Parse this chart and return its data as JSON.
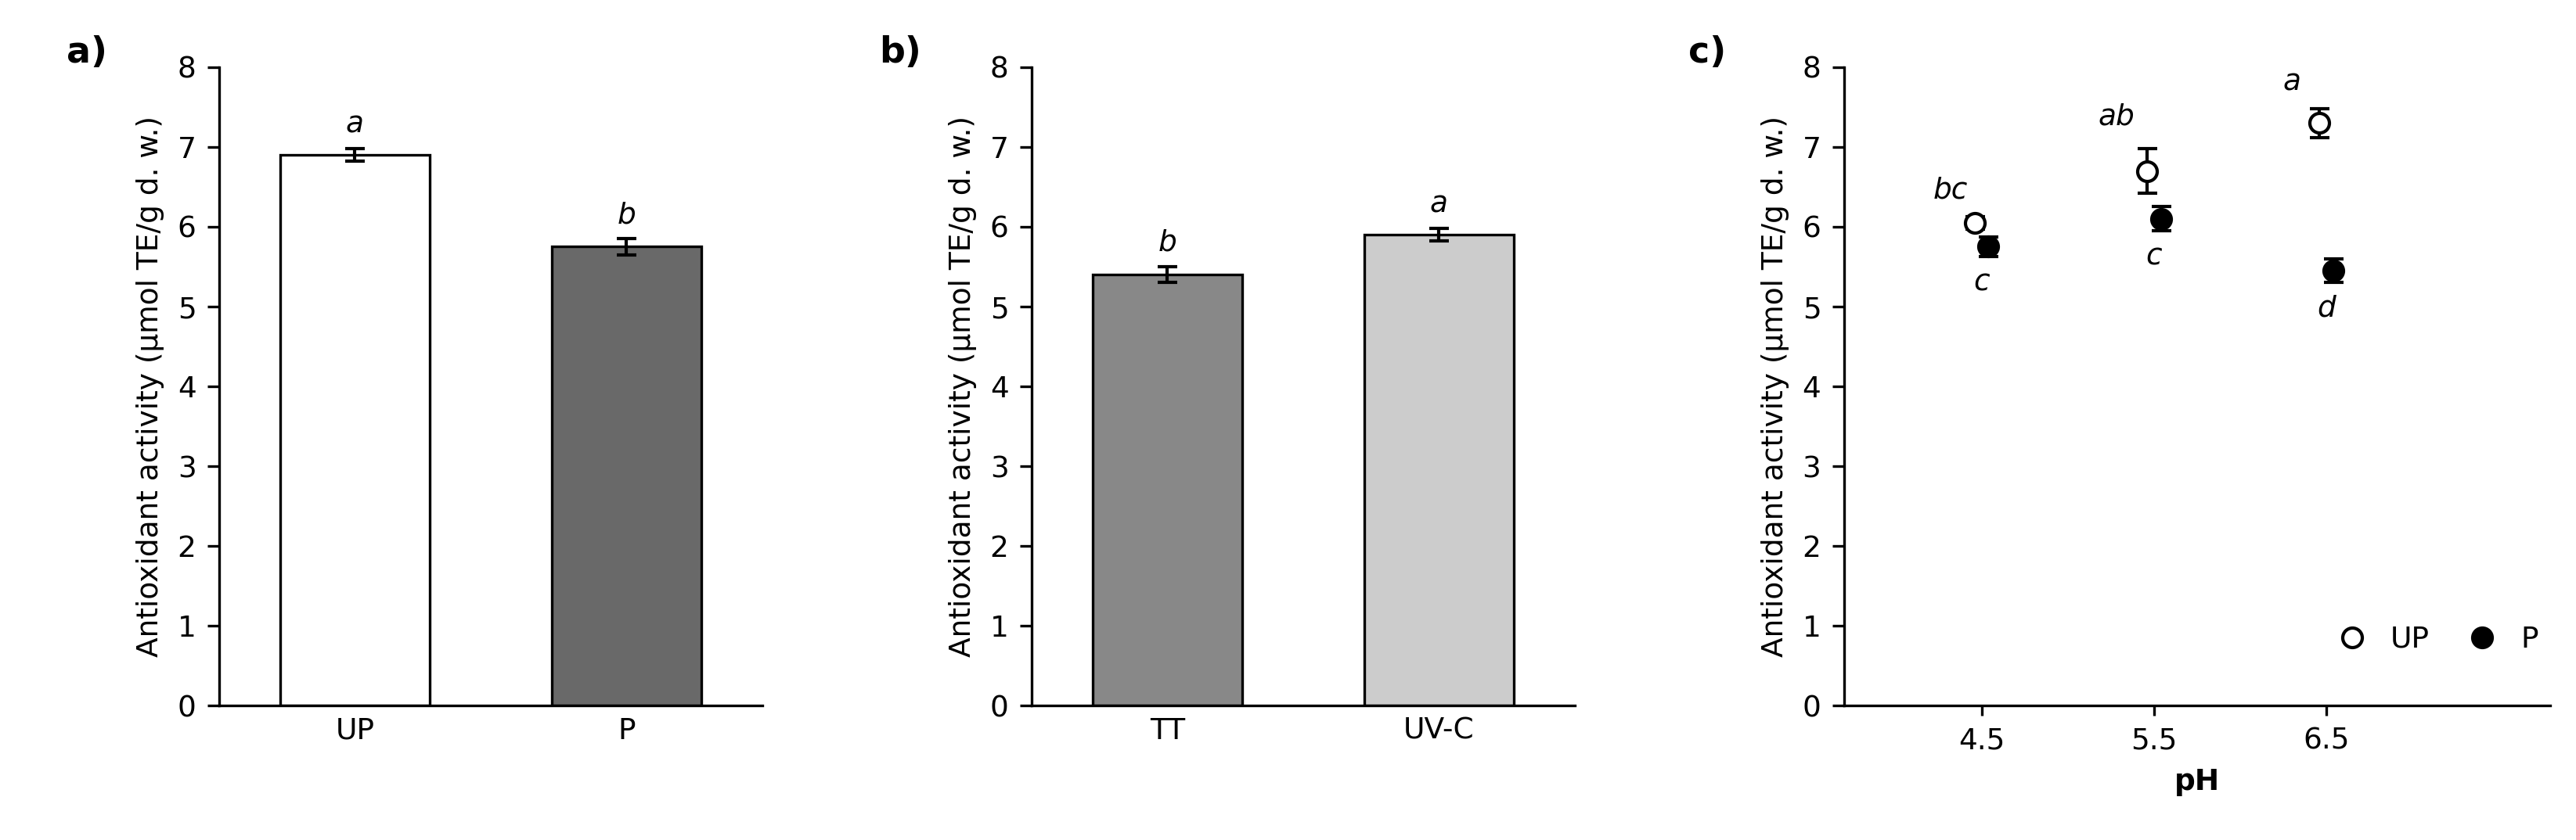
{
  "panel_a": {
    "categories": [
      "UP",
      "P"
    ],
    "values": [
      6.9,
      5.75
    ],
    "errors": [
      0.08,
      0.1
    ],
    "bar_colors": [
      "#ffffff",
      "#696969"
    ],
    "bar_edgecolors": [
      "#000000",
      "#000000"
    ],
    "letters": [
      "a",
      "b"
    ],
    "ylabel": "Antioxidant activity (μmol TE/g d. w.)",
    "ylim": [
      0,
      8
    ],
    "yticks": [
      0,
      1,
      2,
      3,
      4,
      5,
      6,
      7,
      8
    ],
    "panel_label": "a)"
  },
  "panel_b": {
    "categories": [
      "TT",
      "UV-C"
    ],
    "values": [
      5.4,
      5.9
    ],
    "errors": [
      0.1,
      0.08
    ],
    "bar_colors": [
      "#888888",
      "#cccccc"
    ],
    "bar_edgecolors": [
      "#000000",
      "#000000"
    ],
    "letters": [
      "b",
      "a"
    ],
    "ylabel": "Antioxidant activity (μmol TE/g d. w.)",
    "ylim": [
      0,
      8
    ],
    "yticks": [
      0,
      1,
      2,
      3,
      4,
      5,
      6,
      7,
      8
    ],
    "panel_label": "b)"
  },
  "panel_c": {
    "x": [
      4.5,
      5.5,
      6.5
    ],
    "up_values": [
      6.05,
      6.7,
      7.3
    ],
    "up_errors": [
      0.08,
      0.28,
      0.18
    ],
    "p_values": [
      5.75,
      6.1,
      5.45
    ],
    "p_errors": [
      0.12,
      0.15,
      0.15
    ],
    "up_letters": [
      "bc",
      "ab",
      "a"
    ],
    "p_letters": [
      "c",
      "c",
      "d"
    ],
    "xlabel": "pH",
    "ylabel": "Antioxidant activity (μmol TE/g d. w.)",
    "ylim": [
      0,
      8
    ],
    "yticks": [
      0,
      1,
      2,
      3,
      4,
      5,
      6,
      7,
      8
    ],
    "xticks": [
      4.5,
      5.5,
      6.5
    ],
    "xlim": [
      3.7,
      7.8
    ],
    "panel_label": "c)"
  },
  "background_color": "#ffffff",
  "fontsize_label": 9,
  "fontsize_tick": 9,
  "fontsize_letter": 9,
  "fontsize_panel": 11
}
